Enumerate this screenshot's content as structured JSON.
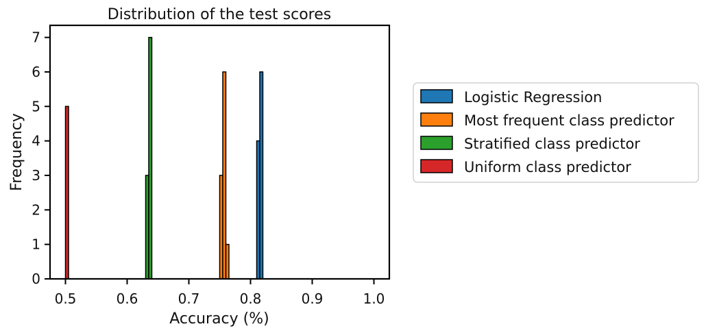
{
  "chart_data": {
    "type": "bar",
    "title": "Distribution of the test scores",
    "xlabel": "Accuracy (%)",
    "ylabel": "Frequency",
    "xlim": [
      0.475,
      1.025
    ],
    "ylim": [
      0,
      7.35
    ],
    "xticks": [
      "0.5",
      "0.6",
      "0.7",
      "0.8",
      "0.9",
      "1.0"
    ],
    "xtick_values": [
      0.5,
      0.6,
      0.7,
      0.8,
      0.9,
      1.0
    ],
    "yticks": [
      "0",
      "1",
      "2",
      "3",
      "4",
      "5",
      "6",
      "7"
    ],
    "ytick_values": [
      0,
      1,
      2,
      3,
      4,
      5,
      6,
      7
    ],
    "grid": false,
    "legend_position": "outside-right",
    "bin_width": 0.005,
    "series": [
      {
        "name": "Logistic Regression",
        "color": "#1f77b4",
        "bins": [
          {
            "x": 0.81,
            "value": 4
          },
          {
            "x": 0.815,
            "value": 6
          }
        ]
      },
      {
        "name": "Most frequent class predictor",
        "color": "#ff7f0e",
        "bins": [
          {
            "x": 0.75,
            "value": 3
          },
          {
            "x": 0.755,
            "value": 6
          },
          {
            "x": 0.76,
            "value": 1
          }
        ]
      },
      {
        "name": "Stratified class predictor",
        "color": "#2ca02c",
        "bins": [
          {
            "x": 0.63,
            "value": 3
          },
          {
            "x": 0.635,
            "value": 7
          }
        ]
      },
      {
        "name": "Uniform class predictor",
        "color": "#d62728",
        "bins": [
          {
            "x": 0.5,
            "value": 5
          }
        ]
      }
    ]
  }
}
